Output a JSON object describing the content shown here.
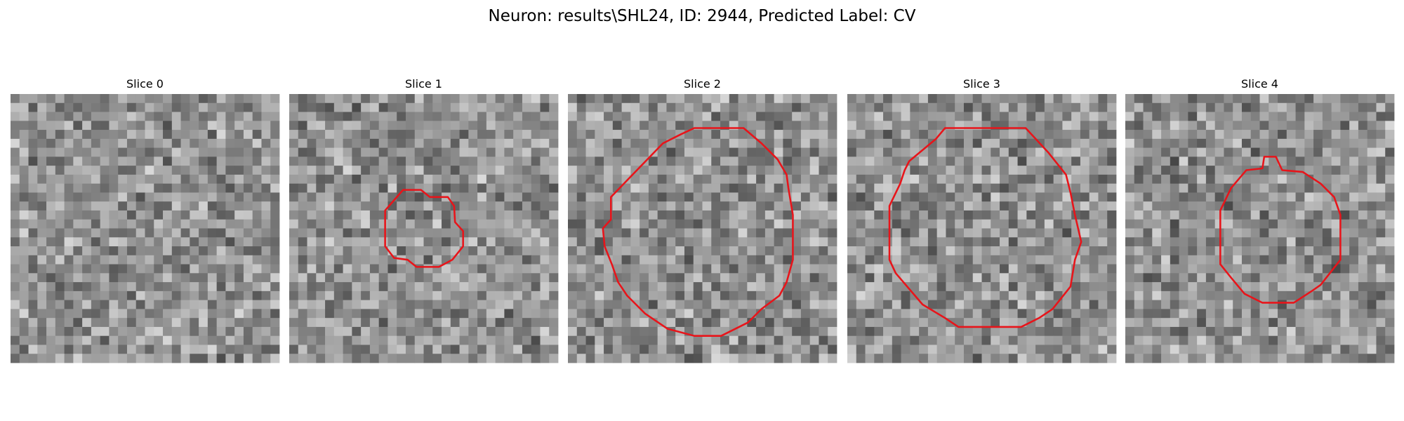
{
  "title": "Neuron: results\\SHL24, ID: 2944, Predicted Label: CV",
  "slices": [
    {
      "title": "Slice 0"
    },
    {
      "title": "Slice 1"
    },
    {
      "title": "Slice 2"
    },
    {
      "title": "Slice 3"
    },
    {
      "title": "Slice 4"
    }
  ]
}
